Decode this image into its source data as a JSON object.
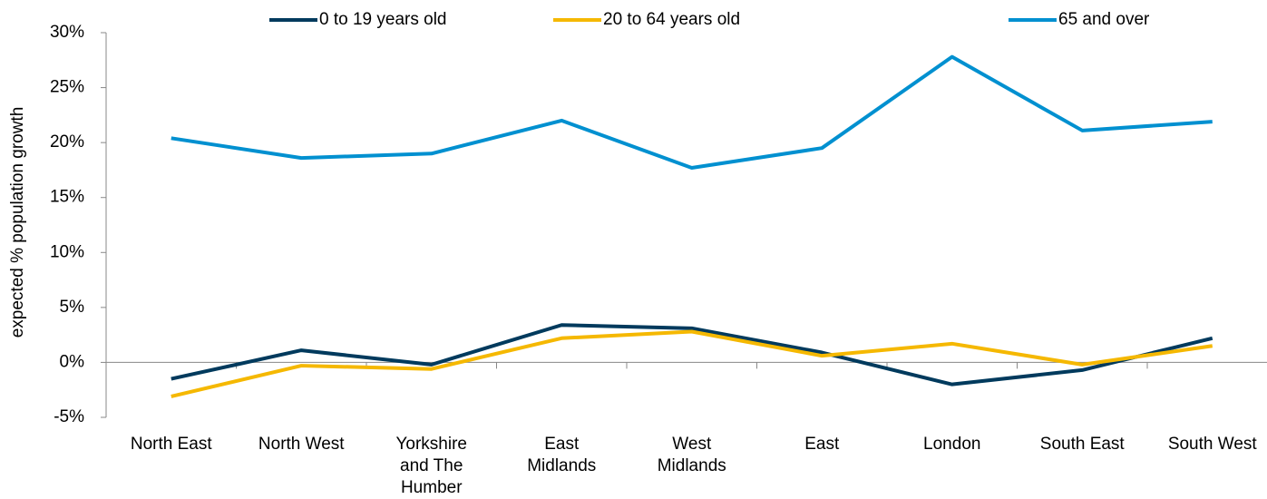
{
  "chart_data": {
    "type": "line",
    "y_label": "expected % population growth",
    "categories": [
      "North East",
      "North West",
      "Yorkshire and The Humber",
      "East Midlands",
      "West Midlands",
      "East",
      "London",
      "South East",
      "South West"
    ],
    "series": [
      {
        "name": "0 to 19 years old",
        "color": "#003a5d",
        "values": [
          -1.5,
          1.1,
          -0.2,
          3.4,
          3.1,
          0.9,
          -2.0,
          -0.7,
          2.2
        ]
      },
      {
        "name": "20 to 64 years old",
        "color": "#f5b800",
        "values": [
          -3.1,
          -0.3,
          -0.6,
          2.2,
          2.8,
          0.6,
          1.7,
          -0.2,
          1.5
        ]
      },
      {
        "name": "65 and over",
        "color": "#0090d0",
        "values": [
          20.4,
          18.6,
          19.0,
          22.0,
          17.7,
          19.5,
          27.8,
          21.1,
          21.9
        ]
      }
    ],
    "ylim": [
      -5,
      30
    ],
    "yticks": [
      {
        "value": -5,
        "label": "-5%"
      },
      {
        "value": 0,
        "label": "0%"
      },
      {
        "value": 5,
        "label": "5%"
      },
      {
        "value": 10,
        "label": "10%"
      },
      {
        "value": 15,
        "label": "15%"
      },
      {
        "value": 20,
        "label": "20%"
      },
      {
        "value": 25,
        "label": "25%"
      },
      {
        "value": 30,
        "label": "30%"
      }
    ],
    "legend": "top"
  }
}
